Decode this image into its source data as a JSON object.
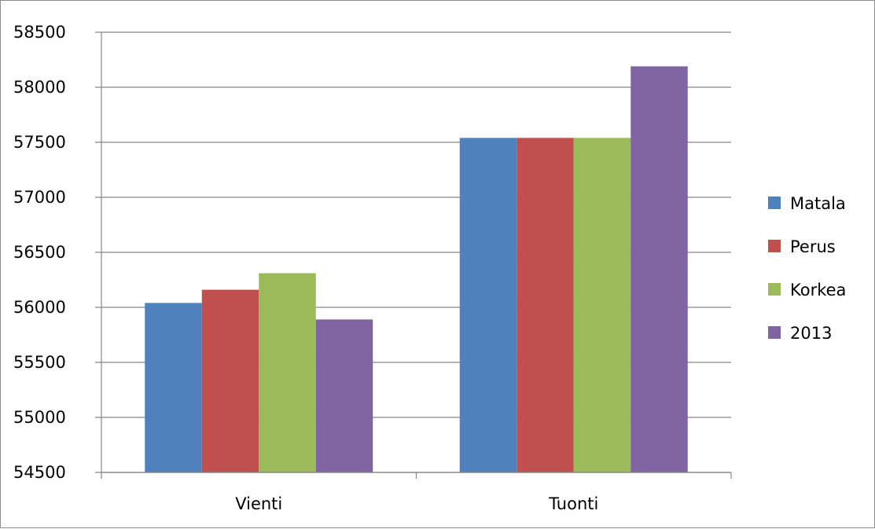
{
  "chart_data": {
    "type": "bar",
    "categories": [
      "Vienti",
      "Tuonti"
    ],
    "series": [
      {
        "name": "Matala",
        "color": "#4F81BD",
        "values": [
          56040,
          57540
        ]
      },
      {
        "name": "Perus",
        "color": "#C0504D",
        "values": [
          56160,
          57540
        ]
      },
      {
        "name": "Korkea",
        "color": "#9BBB59",
        "values": [
          56310,
          57540
        ]
      },
      {
        "name": "2013",
        "color": "#8064A2",
        "values": [
          55890,
          58190
        ]
      }
    ],
    "ylim": [
      54500,
      58500
    ],
    "yticks": [
      "54500",
      "55000",
      "55500",
      "56000",
      "56500",
      "57000",
      "57500",
      "58000",
      "58500"
    ],
    "grid": true,
    "legend_position": "right"
  }
}
